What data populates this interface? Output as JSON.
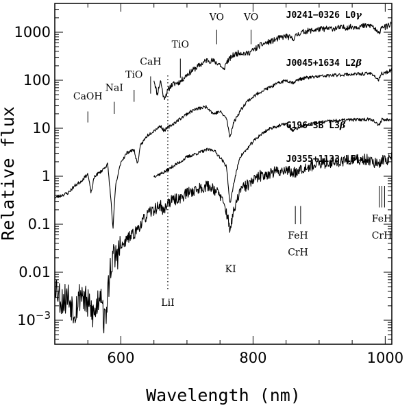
{
  "chart_data": {
    "type": "line",
    "title": "",
    "xlabel": "Wavelength (nm)",
    "ylabel": "Relative flux",
    "xlim": [
      500,
      1010
    ],
    "ylim_log10": [
      -3.5,
      3.6
    ],
    "yscale": "log",
    "x_ticks": [
      {
        "value": 600,
        "label": "600"
      },
      {
        "value": 800,
        "label": "800"
      },
      {
        "value": 1000,
        "label": "1000"
      }
    ],
    "y_ticks": [
      {
        "log": 3,
        "label": "1000"
      },
      {
        "log": 2,
        "label": "100"
      },
      {
        "log": 1,
        "label": "10"
      },
      {
        "log": 0,
        "label": "1"
      },
      {
        "log": -1,
        "label": "0.1"
      },
      {
        "log": -2,
        "label": "0.01"
      },
      {
        "log": -3,
        "label": "10",
        "sup": "−3"
      }
    ],
    "series": [
      {
        "name": "J0241−0326 L0γ",
        "seed": 11,
        "noise": 0.06,
        "points": [
          [
            650,
            2.02
          ],
          [
            655,
            1.7
          ],
          [
            660,
            2.0
          ],
          [
            665,
            1.62
          ],
          [
            670,
            1.75
          ],
          [
            675,
            1.88
          ],
          [
            680,
            1.92
          ],
          [
            690,
            1.97
          ],
          [
            700,
            2.12
          ],
          [
            710,
            2.22
          ],
          [
            720,
            2.32
          ],
          [
            730,
            2.42
          ],
          [
            740,
            2.4
          ],
          [
            750,
            2.33
          ],
          [
            755,
            2.2
          ],
          [
            760,
            2.38
          ],
          [
            770,
            2.52
          ],
          [
            780,
            2.58
          ],
          [
            790,
            2.55
          ],
          [
            800,
            2.62
          ],
          [
            810,
            2.72
          ],
          [
            820,
            2.78
          ],
          [
            830,
            2.82
          ],
          [
            840,
            2.88
          ],
          [
            850,
            2.92
          ],
          [
            860,
            2.86
          ],
          [
            870,
            2.98
          ],
          [
            880,
            3.02
          ],
          [
            900,
            3.06
          ],
          [
            920,
            3.08
          ],
          [
            940,
            3.1
          ],
          [
            960,
            3.12
          ],
          [
            980,
            3.14
          ],
          [
            990,
            2.96
          ],
          [
            995,
            3.14
          ],
          [
            1000,
            3.1
          ],
          [
            1010,
            3.18
          ]
        ]
      },
      {
        "name": "J0045+1634 L2β",
        "seed": 23,
        "noise": 0.035,
        "points": [
          [
            500,
            -0.45
          ],
          [
            510,
            -0.4
          ],
          [
            520,
            -0.35
          ],
          [
            530,
            -0.2
          ],
          [
            540,
            -0.1
          ],
          [
            550,
            0.05
          ],
          [
            555,
            -0.35
          ],
          [
            560,
            0.0
          ],
          [
            570,
            0.1
          ],
          [
            580,
            0.25
          ],
          [
            585,
            -0.5
          ],
          [
            588,
            -1.1
          ],
          [
            592,
            -0.2
          ],
          [
            600,
            0.3
          ],
          [
            610,
            0.5
          ],
          [
            620,
            0.55
          ],
          [
            625,
            0.25
          ],
          [
            630,
            0.65
          ],
          [
            640,
            0.85
          ],
          [
            650,
            0.95
          ],
          [
            660,
            1.05
          ],
          [
            665,
            0.95
          ],
          [
            670,
            1.0
          ],
          [
            680,
            1.1
          ],
          [
            690,
            1.2
          ],
          [
            700,
            1.3
          ],
          [
            710,
            1.38
          ],
          [
            720,
            1.42
          ],
          [
            730,
            1.45
          ],
          [
            740,
            1.3
          ],
          [
            750,
            1.35
          ],
          [
            760,
            1.2
          ],
          [
            765,
            0.8
          ],
          [
            770,
            1.1
          ],
          [
            780,
            1.35
          ],
          [
            790,
            1.55
          ],
          [
            800,
            1.65
          ],
          [
            810,
            1.75
          ],
          [
            820,
            1.82
          ],
          [
            830,
            1.88
          ],
          [
            840,
            1.95
          ],
          [
            850,
            2.0
          ],
          [
            860,
            1.95
          ],
          [
            870,
            2.02
          ],
          [
            880,
            2.05
          ],
          [
            900,
            2.08
          ],
          [
            920,
            2.1
          ],
          [
            940,
            2.12
          ],
          [
            960,
            2.13
          ],
          [
            980,
            2.14
          ],
          [
            990,
            2.0
          ],
          [
            995,
            2.14
          ],
          [
            1000,
            2.15
          ],
          [
            1010,
            2.22
          ]
        ]
      },
      {
        "name": "G196−3B L3β",
        "seed": 37,
        "noise": 0.035,
        "points": [
          [
            650,
            0.0
          ],
          [
            660,
            0.05
          ],
          [
            670,
            0.12
          ],
          [
            680,
            0.22
          ],
          [
            690,
            0.3
          ],
          [
            700,
            0.4
          ],
          [
            710,
            0.45
          ],
          [
            720,
            0.5
          ],
          [
            730,
            0.55
          ],
          [
            740,
            0.55
          ],
          [
            750,
            0.4
          ],
          [
            760,
            0.2
          ],
          [
            765,
            -0.6
          ],
          [
            770,
            -0.2
          ],
          [
            780,
            0.4
          ],
          [
            790,
            0.55
          ],
          [
            800,
            0.72
          ],
          [
            810,
            0.85
          ],
          [
            820,
            0.95
          ],
          [
            830,
            1.02
          ],
          [
            840,
            1.05
          ],
          [
            850,
            1.1
          ],
          [
            860,
            0.95
          ],
          [
            870,
            1.02
          ],
          [
            880,
            1.07
          ],
          [
            900,
            1.12
          ],
          [
            920,
            1.15
          ],
          [
            940,
            1.17
          ],
          [
            960,
            1.18
          ],
          [
            980,
            1.19
          ],
          [
            990,
            1.05
          ],
          [
            995,
            1.19
          ],
          [
            1000,
            1.17
          ],
          [
            1010,
            1.2
          ]
        ]
      },
      {
        "name": "J0355+1133 L5γ",
        "seed": 53,
        "noise": 0.12,
        "points": [
          [
            500,
            -2.2
          ],
          [
            510,
            -2.6
          ],
          [
            520,
            -2.5
          ],
          [
            530,
            -2.8
          ],
          [
            540,
            -2.4
          ],
          [
            550,
            -2.7
          ],
          [
            560,
            -2.9
          ],
          [
            570,
            -2.3
          ],
          [
            575,
            -3.1
          ],
          [
            580,
            -2.5
          ],
          [
            585,
            -1.8
          ],
          [
            590,
            -1.7
          ],
          [
            600,
            -1.5
          ],
          [
            610,
            -1.3
          ],
          [
            620,
            -1.2
          ],
          [
            630,
            -1.0
          ],
          [
            640,
            -0.8
          ],
          [
            650,
            -0.7
          ],
          [
            660,
            -0.6
          ],
          [
            665,
            -0.75
          ],
          [
            670,
            -0.55
          ],
          [
            680,
            -0.5
          ],
          [
            690,
            -0.45
          ],
          [
            700,
            -0.35
          ],
          [
            710,
            -0.3
          ],
          [
            720,
            -0.25
          ],
          [
            730,
            -0.2
          ],
          [
            740,
            -0.25
          ],
          [
            750,
            -0.4
          ],
          [
            760,
            -0.75
          ],
          [
            765,
            -1.1
          ],
          [
            770,
            -0.8
          ],
          [
            780,
            -0.3
          ],
          [
            790,
            -0.2
          ],
          [
            800,
            -0.1
          ],
          [
            810,
            0.0
          ],
          [
            820,
            0.05
          ],
          [
            830,
            0.08
          ],
          [
            840,
            0.1
          ],
          [
            850,
            0.15
          ],
          [
            860,
            0.05
          ],
          [
            870,
            0.15
          ],
          [
            880,
            0.2
          ],
          [
            900,
            0.25
          ],
          [
            920,
            0.3
          ],
          [
            940,
            0.32
          ],
          [
            960,
            0.34
          ],
          [
            980,
            0.35
          ],
          [
            990,
            0.2
          ],
          [
            995,
            0.35
          ],
          [
            1000,
            0.33
          ],
          [
            1010,
            0.4
          ]
        ]
      }
    ],
    "spectrum_labels": [
      {
        "text": "J0241−0326 L0",
        "greek": "γ",
        "x": 850,
        "y": 3.3
      },
      {
        "text": "J0045+1634 L2",
        "greek": "β",
        "x": 850,
        "y": 2.3
      },
      {
        "text": "G196−3B L3",
        "greek": "β",
        "x": 850,
        "y": 1.0
      },
      {
        "text": "J0355+1133 L5",
        "greek": "γ",
        "x": 850,
        "y": 0.3
      }
    ],
    "feature_markers": [
      {
        "text": "CaOH",
        "x": 550,
        "label_y": 1.6,
        "lines": [
          [
            550,
            1.12,
            1.35
          ]
        ]
      },
      {
        "text": "NaI",
        "x": 590,
        "label_y": 1.78,
        "lines": [
          [
            590,
            1.3,
            1.55
          ]
        ]
      },
      {
        "text": "TiO",
        "x": 620,
        "label_y": 2.05,
        "lines": [
          [
            620,
            1.55,
            1.8
          ]
        ]
      },
      {
        "text": "CaH",
        "x": 645,
        "label_y": 2.32,
        "lines": [
          [
            645,
            1.72,
            2.08
          ]
        ]
      },
      {
        "text": "TiO",
        "x": 690,
        "label_y": 2.68,
        "lines": [
          [
            690,
            2.05,
            2.45
          ]
        ]
      },
      {
        "text": "VO",
        "x": 745,
        "label_y": 3.25,
        "lines": [
          [
            745,
            2.75,
            3.05
          ]
        ]
      },
      {
        "text": "VO",
        "x": 797,
        "label_y": 3.25,
        "lines": [
          [
            797,
            2.75,
            3.05
          ]
        ]
      },
      {
        "text": "FeH",
        "text2": "CrH",
        "x": 868,
        "label_y": -1.3,
        "label2_y": -1.65,
        "lines": [
          [
            864,
            -1.0,
            -0.62
          ],
          [
            872,
            -1.0,
            -0.62
          ]
        ]
      },
      {
        "text": "FeH",
        "text2": "CrH",
        "x": 995,
        "label_y": -0.95,
        "label2_y": -1.3,
        "lines": [
          [
            991,
            -0.65,
            -0.2
          ],
          [
            995,
            -0.65,
            -0.2
          ],
          [
            999,
            -0.65,
            -0.2
          ]
        ]
      },
      {
        "text": "KI",
        "x": 766,
        "label_y": -2.0,
        "lines": []
      },
      {
        "text": "LiI",
        "x": 671,
        "label_y": -2.7,
        "lines": []
      }
    ],
    "dotted_lines": [
      {
        "x": 671,
        "y_from": -2.35,
        "y_to": 2.1
      }
    ]
  }
}
